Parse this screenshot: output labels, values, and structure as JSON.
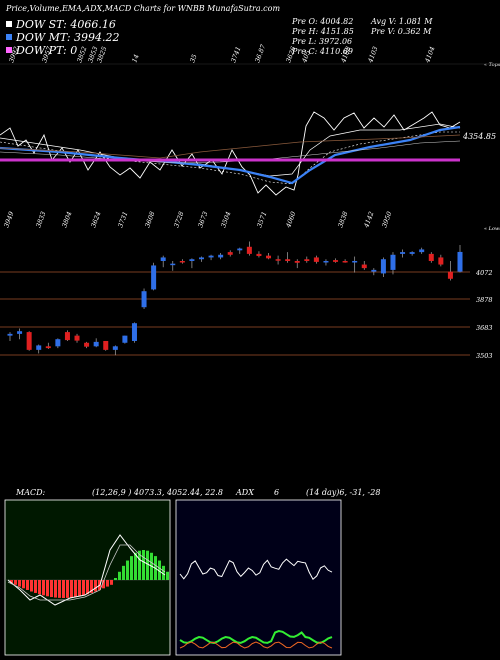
{
  "header": {
    "title": "Price,Volume,EMA,ADX,MACD Charts for WNBB MunafaSutra.com"
  },
  "legend": [
    {
      "label": "DOW ST: 4066.16",
      "color": "#ffffff"
    },
    {
      "label": "DOW MT: 3994.22",
      "color": "#3b82f6"
    },
    {
      "label": "DOW PT: 0",
      "color": "#ff66ff"
    }
  ],
  "stats": {
    "open": "Pre   O: 4004.82",
    "high": "Pre   H: 4151.85",
    "low": "Pre   L: 3972.06",
    "close": "Pre   C: 4110.69",
    "avg_volume": "Avg V: 1.081  M",
    "pre_volume": "Pre   V: 0.362  M"
  },
  "colors": {
    "ema_short": "#ffffff",
    "ema_mid": "#3b82f6",
    "ema_pt": "#cc33cc",
    "up": "#2f6fe8",
    "down": "#e02020",
    "macd_hist_neg": "#ff3333",
    "macd_hist_pos": "#33dd33",
    "adx_plus": "#33ee33",
    "adx_minus": "#ee6622"
  },
  "ema_panel": {
    "price_label": "4354.85",
    "top_labels": [
      "3992",
      "3957",
      "3852",
      "3853",
      "3825",
      "14",
      "35",
      "3741",
      "36.87",
      "3626",
      "405",
      "4168",
      "4103",
      "4104"
    ],
    "top_right": "« Tops",
    "low_labels": [
      "3949",
      "3833",
      "3804",
      "3624",
      "3731",
      "3608",
      "3728",
      "3673",
      "3504",
      "3571",
      "4060",
      "3838",
      "4142",
      "3950"
    ],
    "low_right": "« Lows"
  },
  "price_panel": {
    "levels": [
      "4072",
      "3878",
      "3683",
      "3503"
    ]
  },
  "indicators": {
    "macd_label": "MACD:",
    "macd_values": "(12,26,9 ) 4073.3, 4052.44, 22.8",
    "adx_label": "ADX",
    "adx_number": "6",
    "adx_values": "(14 day)6, -31, -28"
  },
  "chart_data": {
    "type": "candlestick",
    "title": "Price,Volume,EMA,ADX,MACD Charts for WNBB MunafaSutra.com",
    "ylabels": [
      "4072",
      "3878",
      "3683",
      "3503"
    ],
    "series": [
      {
        "name": "DOW ST",
        "value": 4066.16
      },
      {
        "name": "DOW MT",
        "value": 3994.22
      },
      {
        "name": "DOW PT",
        "value": 0
      }
    ],
    "candles": [
      {
        "o": 3640,
        "h": 3660,
        "l": 3610,
        "c": 3650
      },
      {
        "o": 3650,
        "h": 3680,
        "l": 3620,
        "c": 3665
      },
      {
        "o": 3660,
        "h": 3665,
        "l": 3555,
        "c": 3560
      },
      {
        "o": 3560,
        "h": 3590,
        "l": 3540,
        "c": 3585
      },
      {
        "o": 3580,
        "h": 3600,
        "l": 3565,
        "c": 3570
      },
      {
        "o": 3580,
        "h": 3625,
        "l": 3570,
        "c": 3620
      },
      {
        "o": 3660,
        "h": 3670,
        "l": 3610,
        "c": 3615
      },
      {
        "o": 3640,
        "h": 3650,
        "l": 3600,
        "c": 3612
      },
      {
        "o": 3600,
        "h": 3605,
        "l": 3570,
        "c": 3578
      },
      {
        "o": 3580,
        "h": 3625,
        "l": 3575,
        "c": 3605
      },
      {
        "o": 3610,
        "h": 3610,
        "l": 3555,
        "c": 3560
      },
      {
        "o": 3560,
        "h": 3585,
        "l": 3530,
        "c": 3580
      },
      {
        "o": 3600,
        "h": 3640,
        "l": 3595,
        "c": 3640
      },
      {
        "o": 3610,
        "h": 3715,
        "l": 3600,
        "c": 3710
      },
      {
        "o": 3800,
        "h": 3905,
        "l": 3790,
        "c": 3890
      },
      {
        "o": 3900,
        "h": 4050,
        "l": 3895,
        "c": 4035
      },
      {
        "o": 4060,
        "h": 4090,
        "l": 4025,
        "c": 4080
      },
      {
        "o": 4040,
        "h": 4060,
        "l": 4005,
        "c": 4045
      },
      {
        "o": 4060,
        "h": 4070,
        "l": 4045,
        "c": 4052
      },
      {
        "o": 4060,
        "h": 4075,
        "l": 4020,
        "c": 4070
      },
      {
        "o": 4070,
        "h": 4085,
        "l": 4055,
        "c": 4080
      },
      {
        "o": 4080,
        "h": 4095,
        "l": 4065,
        "c": 4090
      },
      {
        "o": 4080,
        "h": 4105,
        "l": 4070,
        "c": 4095
      },
      {
        "o": 4110,
        "h": 4120,
        "l": 4085,
        "c": 4095
      },
      {
        "o": 4120,
        "h": 4135,
        "l": 4100,
        "c": 4130
      },
      {
        "o": 4140,
        "h": 4170,
        "l": 4090,
        "c": 4100
      },
      {
        "o": 4100,
        "h": 4115,
        "l": 4080,
        "c": 4088
      },
      {
        "o": 4090,
        "h": 4105,
        "l": 4070,
        "c": 4075
      },
      {
        "o": 4070,
        "h": 4090,
        "l": 4040,
        "c": 4065
      },
      {
        "o": 4070,
        "h": 4110,
        "l": 4050,
        "c": 4060
      },
      {
        "o": 4060,
        "h": 4070,
        "l": 4020,
        "c": 4050
      },
      {
        "o": 4070,
        "h": 4085,
        "l": 4050,
        "c": 4060
      },
      {
        "o": 4080,
        "h": 4090,
        "l": 4045,
        "c": 4055
      },
      {
        "o": 4060,
        "h": 4070,
        "l": 4035,
        "c": 4060
      },
      {
        "o": 4065,
        "h": 4075,
        "l": 4050,
        "c": 4055
      },
      {
        "o": 4060,
        "h": 4070,
        "l": 4050,
        "c": 4058
      },
      {
        "o": 4060,
        "h": 4085,
        "l": 3995,
        "c": 4060
      },
      {
        "o": 4040,
        "h": 4060,
        "l": 4010,
        "c": 4020
      },
      {
        "o": 4000,
        "h": 4020,
        "l": 3980,
        "c": 4010
      },
      {
        "o": 3990,
        "h": 4080,
        "l": 3970,
        "c": 4070
      },
      {
        "o": 4010,
        "h": 4110,
        "l": 3985,
        "c": 4095
      },
      {
        "o": 4100,
        "h": 4125,
        "l": 4080,
        "c": 4110
      },
      {
        "o": 4100,
        "h": 4115,
        "l": 4090,
        "c": 4110
      },
      {
        "o": 4110,
        "h": 4135,
        "l": 4100,
        "c": 4125
      },
      {
        "o": 4100,
        "h": 4110,
        "l": 4050,
        "c": 4060
      },
      {
        "o": 4080,
        "h": 4095,
        "l": 4030,
        "c": 4040
      },
      {
        "o": 4000,
        "h": 4060,
        "l": 3950,
        "c": 3960
      },
      {
        "o": 4000,
        "h": 4150,
        "l": 3995,
        "c": 4111
      }
    ]
  }
}
